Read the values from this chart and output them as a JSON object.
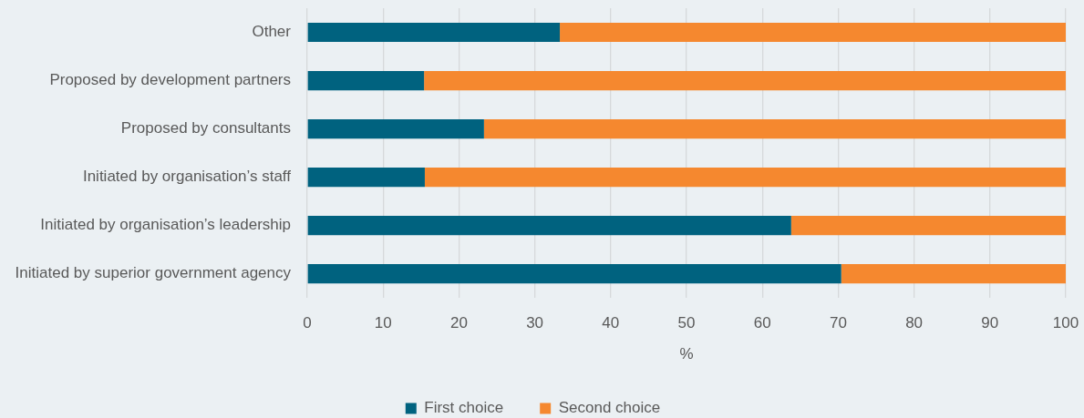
{
  "chart_data": {
    "type": "bar",
    "orientation": "horizontal",
    "stacked": true,
    "categories": [
      "Other",
      "Proposed by development partners",
      "Proposed by consultants",
      "Initiated by organisation’s staff",
      "Initiated by organisation’s leadership",
      "Initiated by superior government agency"
    ],
    "series": [
      {
        "name": "First choice",
        "color": "#00627f",
        "values": [
          33.3,
          15.4,
          23.3,
          15.5,
          63.8,
          70.4
        ]
      },
      {
        "name": "Second choice",
        "color": "#f5882f",
        "values": [
          66.7,
          84.6,
          76.7,
          84.5,
          36.2,
          29.6
        ]
      }
    ],
    "xlim": [
      0,
      100
    ],
    "xticks": [
      0,
      10,
      20,
      30,
      40,
      50,
      60,
      70,
      80,
      90,
      100
    ],
    "xlabel": "%",
    "grid": "x",
    "legend": "bottom"
  }
}
